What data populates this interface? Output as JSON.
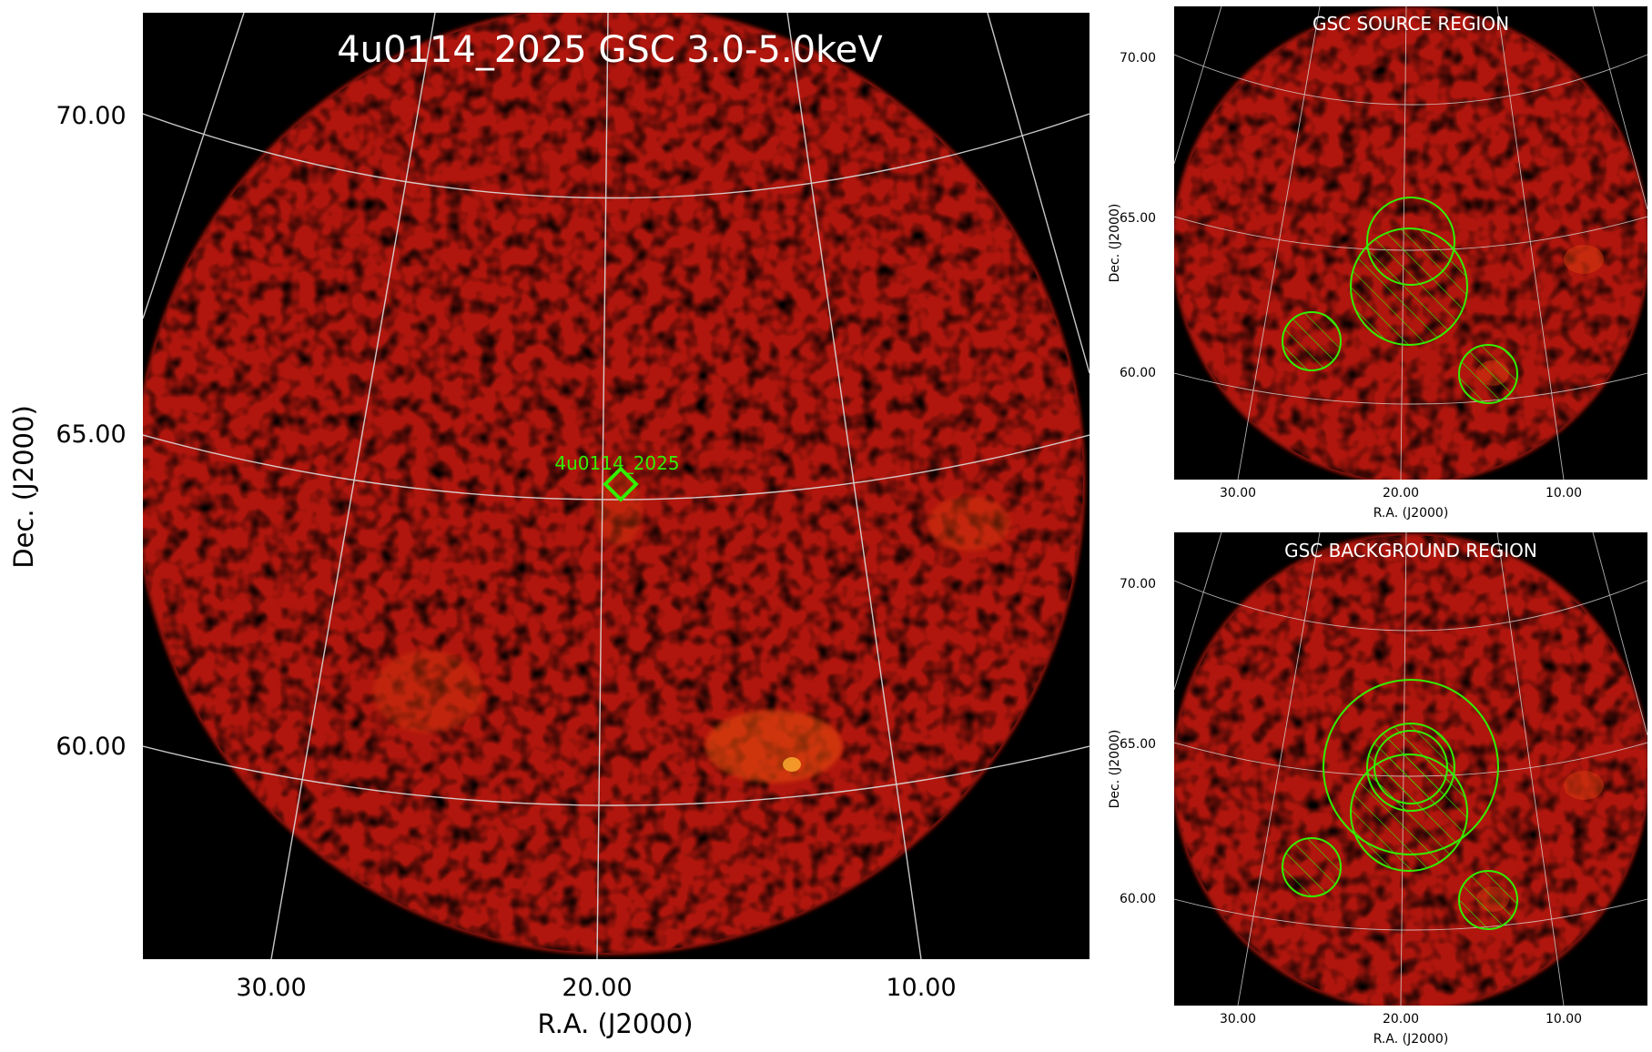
{
  "main": {
    "title": "4u0114_2025 GSC 3.0-5.0keV",
    "source_label": "4u0114_2025",
    "xlabel": "R.A. (J2000)",
    "ylabel": "Dec. (J2000)",
    "x_ticks": [
      "30.00",
      "20.00",
      "10.00"
    ],
    "y_ticks": [
      "70.00",
      "65.00",
      "60.00"
    ]
  },
  "source_panel": {
    "title": "GSC SOURCE REGION",
    "xlabel": "R.A. (J2000)",
    "ylabel": "Dec. (J2000)",
    "x_ticks": [
      "30.00",
      "20.00",
      "10.00"
    ],
    "y_ticks": [
      "70.00",
      "65.00",
      "60.00"
    ]
  },
  "background_panel": {
    "title": "GSC BACKGROUND REGION",
    "xlabel": "R.A. (J2000)",
    "ylabel": "Dec. (J2000)",
    "x_ticks": [
      "30.00",
      "20.00",
      "10.00"
    ],
    "y_ticks": [
      "70.00",
      "65.00",
      "60.00"
    ]
  },
  "colors": {
    "sky_red": "#b01808",
    "region_green": "#33ee00",
    "grid": "#dddddd"
  }
}
